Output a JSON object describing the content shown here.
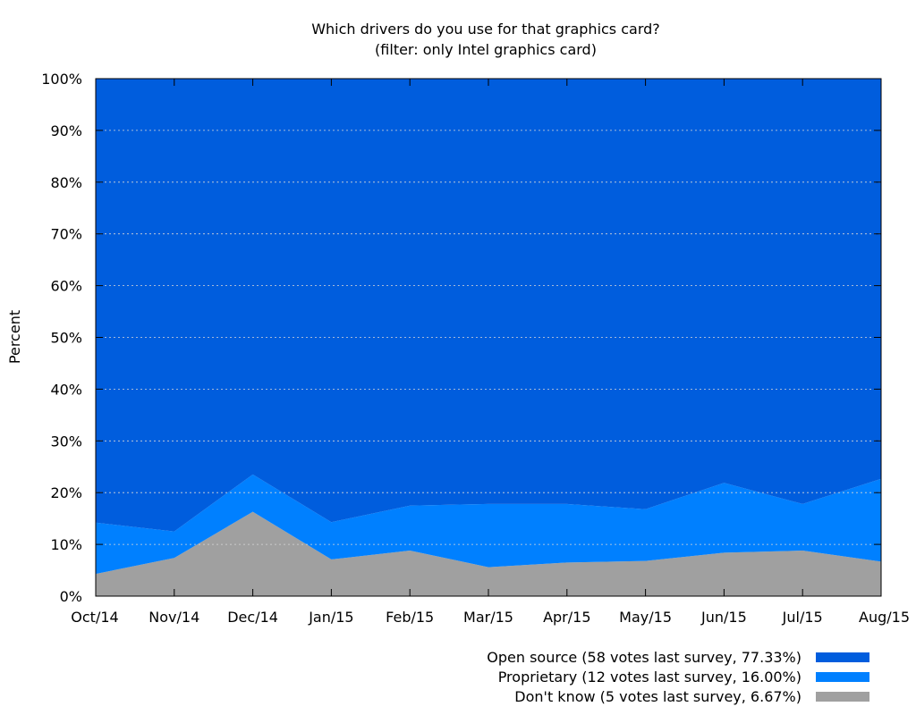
{
  "chart_data": {
    "type": "area",
    "stacked": true,
    "title": "Which drivers do you use for that graphics card?",
    "subtitle": "(filter: only Intel graphics card)",
    "xlabel": "",
    "ylabel": "Percent",
    "ylim": [
      0,
      100
    ],
    "yticks": [
      "0%",
      "10%",
      "20%",
      "30%",
      "40%",
      "50%",
      "60%",
      "70%",
      "80%",
      "90%",
      "100%"
    ],
    "categories": [
      "Oct/14",
      "Nov/14",
      "Dec/14",
      "Jan/15",
      "Feb/15",
      "Mar/15",
      "Apr/15",
      "May/15",
      "Jun/15",
      "Jul/15",
      "Aug/15"
    ],
    "grid": true,
    "legend_position": "bottom-right",
    "series": [
      {
        "name": "Don't know (5 votes last survey, 6.67%)",
        "color": "#a0a0a0",
        "values": [
          4.3,
          7.4,
          16.3,
          7.1,
          8.8,
          5.6,
          6.5,
          6.8,
          8.4,
          8.8,
          6.67
        ]
      },
      {
        "name": "Proprietary (12 votes last survey, 16.00%)",
        "color": "#0080ff",
        "values": [
          9.9,
          5.1,
          7.2,
          7.2,
          8.7,
          12.2,
          11.3,
          10.0,
          13.5,
          9.0,
          16.0
        ]
      },
      {
        "name": "Open source (58 votes last survey, 77.33%)",
        "color": "#005ddd",
        "values": [
          85.8,
          87.5,
          76.5,
          85.7,
          82.5,
          82.2,
          82.2,
          83.2,
          78.1,
          82.2,
          77.33
        ]
      }
    ]
  }
}
